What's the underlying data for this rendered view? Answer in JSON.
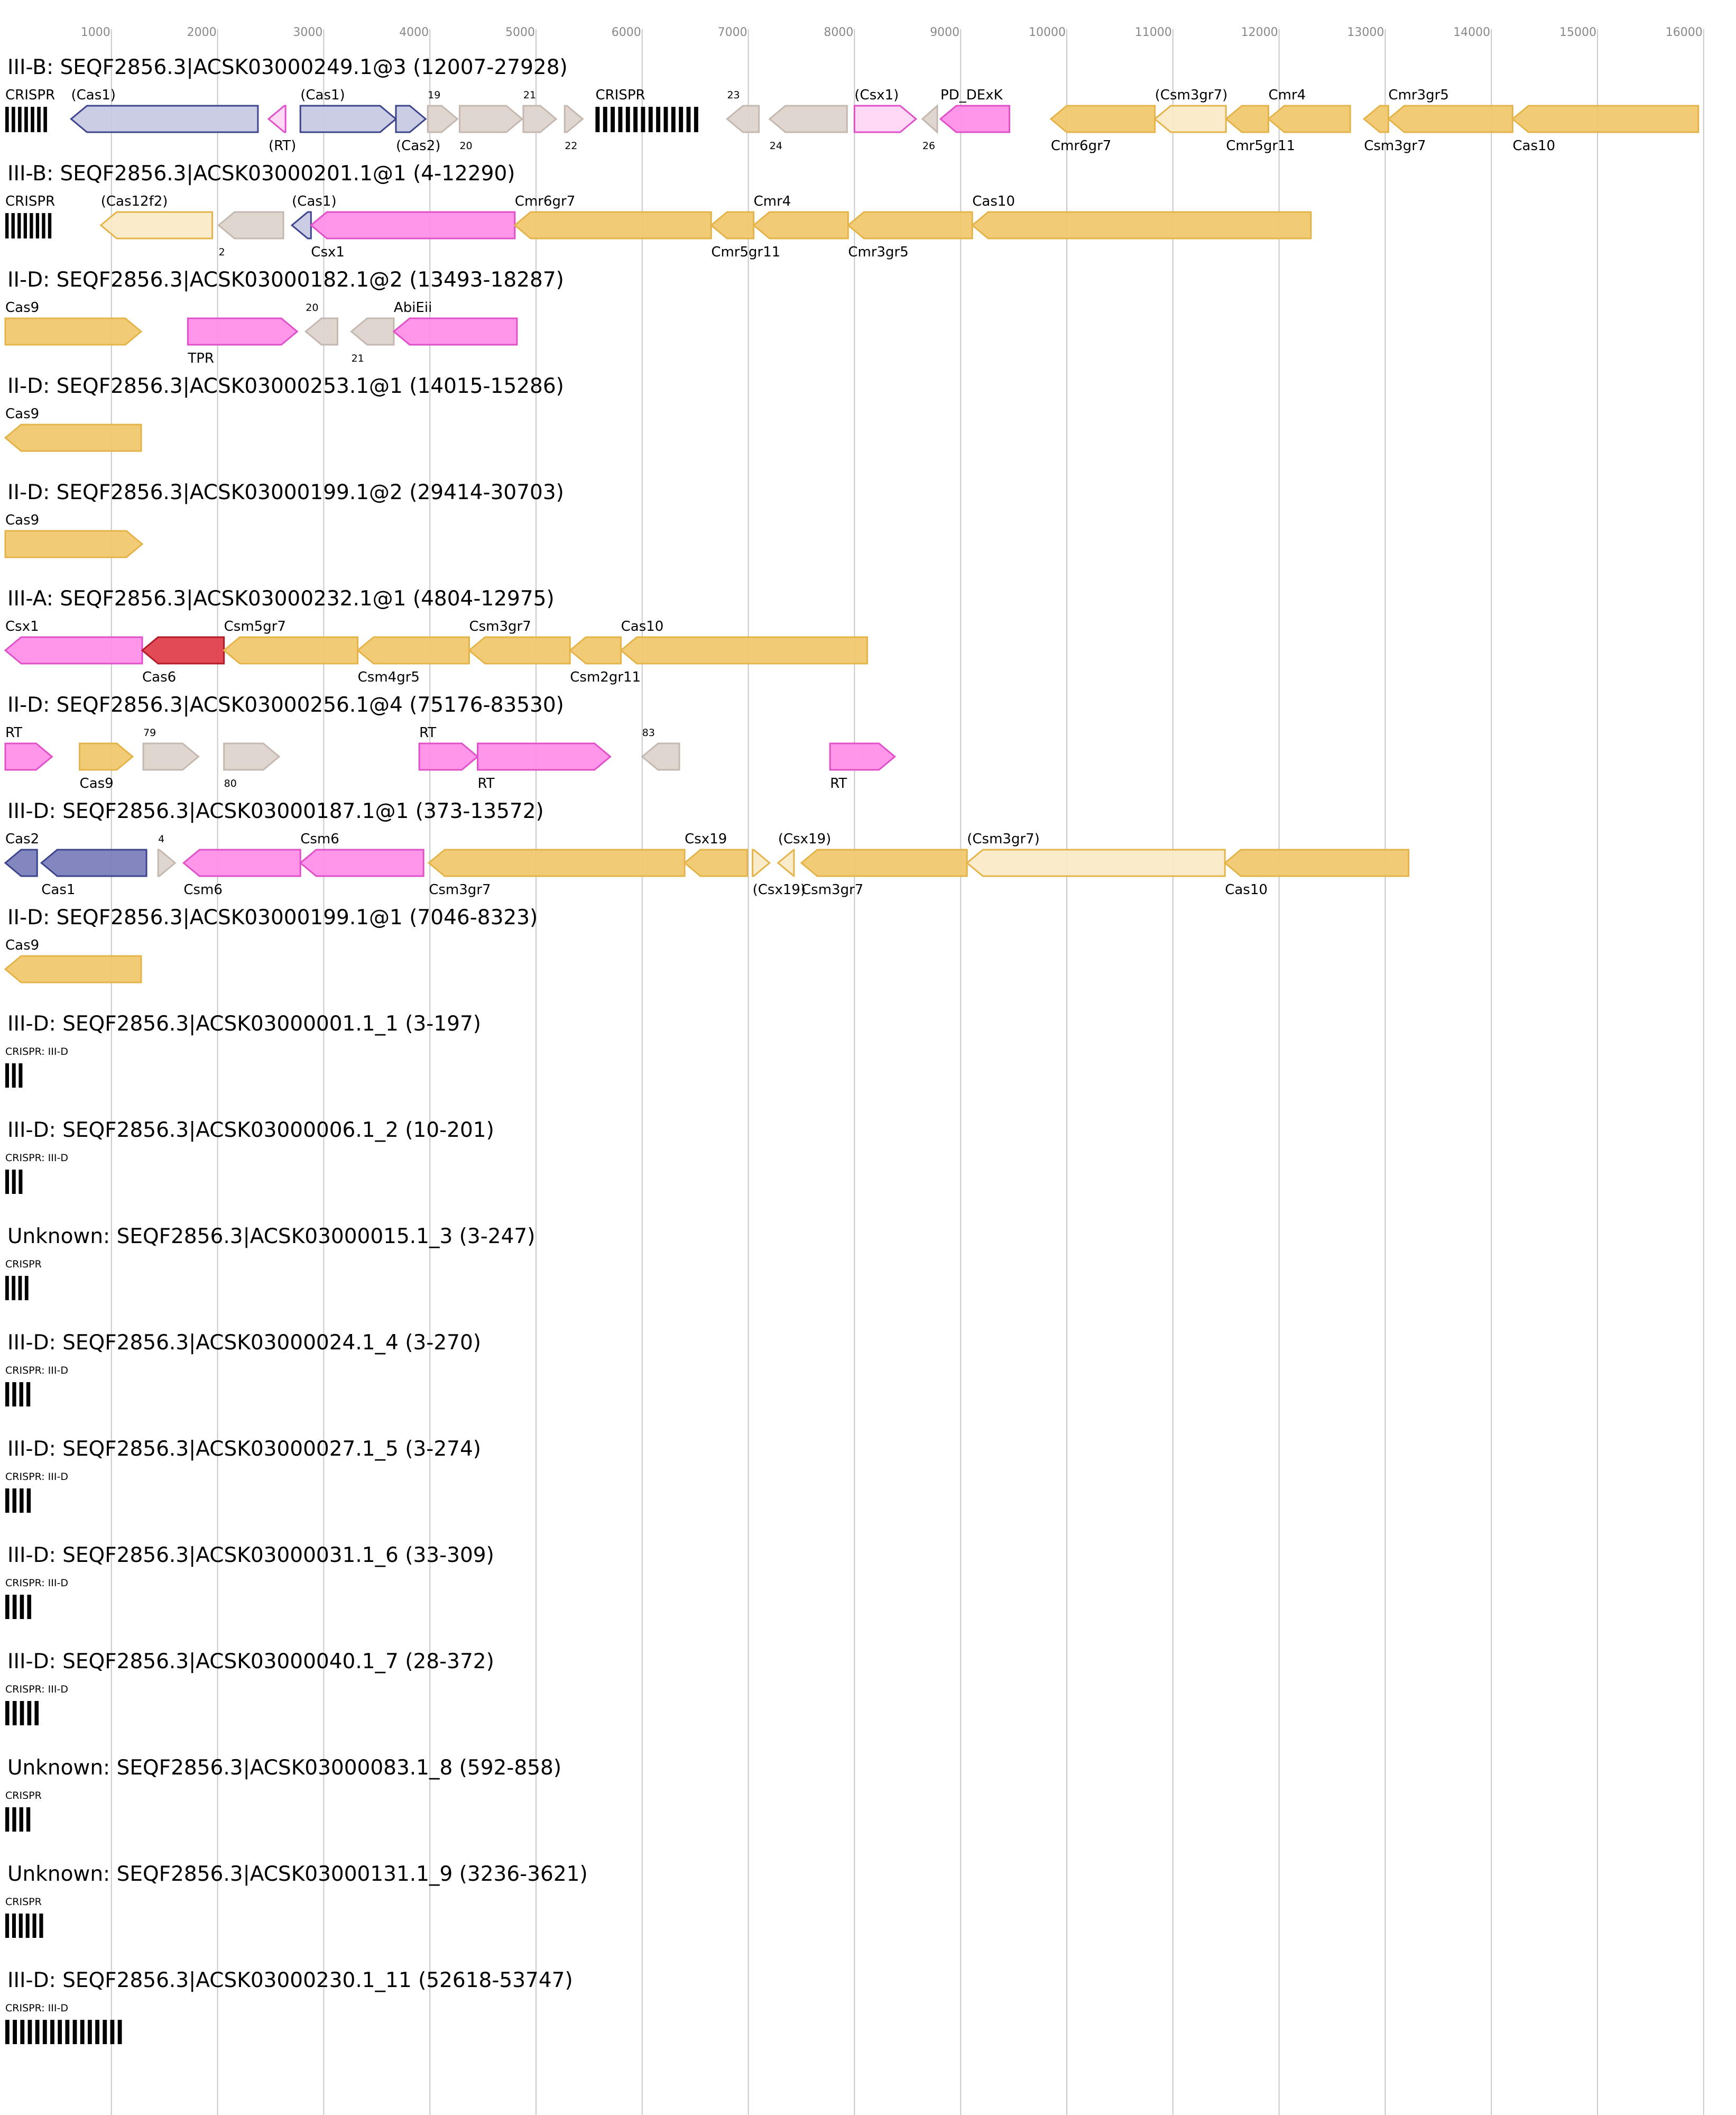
{
  "colors": {
    "cas_core": "#f0c86e",
    "cas_core_stroke": "#e4b44a",
    "cas_partial": "#faeac8",
    "adaptation": "#c8cae4",
    "adaptation_dark": "#7c80bc",
    "adaptation_stroke": "#3c448c",
    "accessory": "#ff90e8",
    "accessory_partial": "#ffd6f6",
    "accessory_stroke": "#e050c8",
    "cas6": "#e0404c",
    "cas6_stroke": "#b01c28",
    "unknown": "#ddd4ce",
    "unknown_stroke": "#c4b8b0",
    "crispr": "#000000"
  },
  "axis": {
    "min": 0,
    "max": 16200,
    "ticks": [
      1000,
      2000,
      3000,
      4000,
      5000,
      6000,
      7000,
      8000,
      9000,
      10000,
      11000,
      12000,
      13000,
      14000,
      15000,
      16000
    ],
    "tick_labels": [
      "1000",
      "2000",
      "3000",
      "4000",
      "5000",
      "6000",
      "7000",
      "8000",
      "9000",
      "10000",
      "11000",
      "12000",
      "13000",
      "14000",
      "15000",
      "16000"
    ]
  },
  "loci": [
    {
      "title": "III-B: SEQF2856.3|ACSK03000249.1@3 (12007-27928)",
      "features": [
        {
          "kind": "crispr",
          "start": 0,
          "end": 420,
          "n": 7,
          "label": "CRISPR",
          "lpos": "above"
        },
        {
          "kind": "gene",
          "start": 620,
          "end": 2380,
          "dir": -1,
          "cls": "adaptation",
          "label": "(Cas1)",
          "lpos": "above"
        },
        {
          "kind": "gene",
          "start": 2480,
          "end": 2640,
          "dir": -1,
          "cls": "accessory_partial",
          "label": "(RT)",
          "lpos": "below"
        },
        {
          "kind": "gene",
          "start": 2780,
          "end": 3680,
          "dir": 1,
          "cls": "adaptation",
          "label": "(Cas1)",
          "lpos": "above"
        },
        {
          "kind": "gene",
          "start": 3680,
          "end": 3960,
          "dir": 1,
          "cls": "adaptation",
          "label": "(Cas2)",
          "lpos": "below"
        },
        {
          "kind": "gene",
          "start": 3980,
          "end": 4260,
          "dir": 1,
          "cls": "unknown",
          "label": "19",
          "lpos": "above",
          "small": true
        },
        {
          "kind": "gene",
          "start": 4280,
          "end": 4870,
          "dir": 1,
          "cls": "unknown",
          "label": "20",
          "lpos": "below",
          "small": true
        },
        {
          "kind": "gene",
          "start": 4880,
          "end": 5190,
          "dir": 1,
          "cls": "unknown",
          "label": "21",
          "lpos": "above",
          "small": true
        },
        {
          "kind": "gene",
          "start": 5270,
          "end": 5440,
          "dir": 1,
          "cls": "unknown",
          "label": "22",
          "lpos": "below",
          "small": true
        },
        {
          "kind": "crispr",
          "start": 5560,
          "end": 6560,
          "n": 14,
          "label": "CRISPR",
          "lpos": "above"
        },
        {
          "kind": "gene",
          "start": 6800,
          "end": 7100,
          "dir": -1,
          "cls": "unknown",
          "label": "23",
          "lpos": "above",
          "small": true
        },
        {
          "kind": "gene",
          "start": 7200,
          "end": 7930,
          "dir": -1,
          "cls": "unknown",
          "label": "24",
          "lpos": "below",
          "small": true
        },
        {
          "kind": "gene",
          "start": 8000,
          "end": 8580,
          "dir": 1,
          "cls": "accessory_partial",
          "label": "(Csx1)",
          "lpos": "above"
        },
        {
          "kind": "gene",
          "start": 8640,
          "end": 8780,
          "dir": -1,
          "cls": "unknown",
          "label": "26",
          "lpos": "below",
          "small": true
        },
        {
          "kind": "gene",
          "start": 8810,
          "end": 9460,
          "dir": -1,
          "cls": "accessory",
          "label": "PD_DExK",
          "lpos": "above"
        },
        {
          "kind": "gene",
          "start": 9850,
          "end": 10830,
          "dir": -1,
          "cls": "cas_core",
          "label": "Cmr6gr7",
          "lpos": "below"
        },
        {
          "kind": "gene",
          "start": 10830,
          "end": 11500,
          "dir": -1,
          "cls": "cas_partial",
          "label": "(Csm3gr7)",
          "lpos": "above"
        },
        {
          "kind": "gene",
          "start": 11500,
          "end": 11900,
          "dir": -1,
          "cls": "cas_core",
          "label": "Cmr5gr11",
          "lpos": "below"
        },
        {
          "kind": "gene",
          "start": 11900,
          "end": 12670,
          "dir": -1,
          "cls": "cas_core",
          "label": "Cmr4",
          "lpos": "above"
        },
        {
          "kind": "gene",
          "start": 12800,
          "end": 13030,
          "dir": -1,
          "cls": "cas_core",
          "label": "Csm3gr7",
          "lpos": "below"
        },
        {
          "kind": "gene",
          "start": 13030,
          "end": 14200,
          "dir": -1,
          "cls": "cas_core",
          "label": "Cmr3gr5",
          "lpos": "above"
        },
        {
          "kind": "gene",
          "start": 14200,
          "end": 15950,
          "dir": -1,
          "cls": "cas_core",
          "label": "Cas10",
          "lpos": "below"
        }
      ]
    },
    {
      "title": "III-B: SEQF2856.3|ACSK03000201.1@1 (4-12290)",
      "features": [
        {
          "kind": "crispr",
          "start": 0,
          "end": 460,
          "n": 8,
          "label": "CRISPR",
          "lpos": "above"
        },
        {
          "kind": "gene",
          "start": 900,
          "end": 1950,
          "dir": -1,
          "cls": "cas_partial",
          "label": "(Cas12f2)",
          "lpos": "above"
        },
        {
          "kind": "gene",
          "start": 2010,
          "end": 2620,
          "dir": -1,
          "cls": "unknown",
          "label": "2",
          "lpos": "below",
          "small": true
        },
        {
          "kind": "gene",
          "start": 2700,
          "end": 2880,
          "dir": -1,
          "cls": "adaptation",
          "label": "(Cas1)",
          "lpos": "above"
        },
        {
          "kind": "gene",
          "start": 2880,
          "end": 4800,
          "dir": -1,
          "cls": "accessory",
          "label": "Csx1",
          "lpos": "below"
        },
        {
          "kind": "gene",
          "start": 4800,
          "end": 6650,
          "dir": -1,
          "cls": "cas_core",
          "label": "Cmr6gr7",
          "lpos": "above"
        },
        {
          "kind": "gene",
          "start": 6650,
          "end": 7050,
          "dir": -1,
          "cls": "cas_core",
          "label": "Cmr5gr11",
          "lpos": "below"
        },
        {
          "kind": "gene",
          "start": 7050,
          "end": 7940,
          "dir": -1,
          "cls": "cas_core",
          "label": "Cmr4",
          "lpos": "above"
        },
        {
          "kind": "gene",
          "start": 7940,
          "end": 9110,
          "dir": -1,
          "cls": "cas_core",
          "label": "Cmr3gr5",
          "lpos": "below"
        },
        {
          "kind": "gene",
          "start": 9110,
          "end": 12300,
          "dir": -1,
          "cls": "cas_core",
          "label": "Cas10",
          "lpos": "above"
        }
      ]
    },
    {
      "title": "II-D: SEQF2856.3|ACSK03000182.1@2 (13493-18287)",
      "features": [
        {
          "kind": "gene",
          "start": 0,
          "end": 1280,
          "dir": 1,
          "cls": "cas_core",
          "label": "Cas9",
          "lpos": "above"
        },
        {
          "kind": "gene",
          "start": 1720,
          "end": 2750,
          "dir": 1,
          "cls": "accessory",
          "label": "TPR",
          "lpos": "below"
        },
        {
          "kind": "gene",
          "start": 2830,
          "end": 3130,
          "dir": -1,
          "cls": "unknown",
          "label": "20",
          "lpos": "above",
          "small": true
        },
        {
          "kind": "gene",
          "start": 3260,
          "end": 3660,
          "dir": -1,
          "cls": "unknown",
          "label": "21",
          "lpos": "below",
          "small": true
        },
        {
          "kind": "gene",
          "start": 3660,
          "end": 4820,
          "dir": -1,
          "cls": "accessory",
          "label": "AbiEii",
          "lpos": "above"
        }
      ]
    },
    {
      "title": "II-D: SEQF2856.3|ACSK03000253.1@1 (14015-15286)",
      "features": [
        {
          "kind": "gene",
          "start": 0,
          "end": 1280,
          "dir": -1,
          "cls": "cas_core",
          "label": "Cas9",
          "lpos": "above"
        }
      ]
    },
    {
      "title": "II-D: SEQF2856.3|ACSK03000199.1@2 (29414-30703)",
      "features": [
        {
          "kind": "gene",
          "start": 0,
          "end": 1290,
          "dir": 1,
          "cls": "cas_core",
          "label": "Cas9",
          "lpos": "above"
        }
      ]
    },
    {
      "title": "III-A: SEQF2856.3|ACSK03000232.1@1 (4804-12975)",
      "features": [
        {
          "kind": "gene",
          "start": 0,
          "end": 1290,
          "dir": -1,
          "cls": "accessory",
          "label": "Csx1",
          "lpos": "above"
        },
        {
          "kind": "gene",
          "start": 1290,
          "end": 2060,
          "dir": -1,
          "cls": "cas6",
          "label": "Cas6",
          "lpos": "below"
        },
        {
          "kind": "gene",
          "start": 2060,
          "end": 3320,
          "dir": -1,
          "cls": "cas_core",
          "label": "Csm5gr7",
          "lpos": "above"
        },
        {
          "kind": "gene",
          "start": 3320,
          "end": 4370,
          "dir": -1,
          "cls": "cas_core",
          "label": "Csm4gr5",
          "lpos": "below"
        },
        {
          "kind": "gene",
          "start": 4370,
          "end": 5320,
          "dir": -1,
          "cls": "cas_core",
          "label": "Csm3gr7",
          "lpos": "above"
        },
        {
          "kind": "gene",
          "start": 5320,
          "end": 5800,
          "dir": -1,
          "cls": "cas_core",
          "label": "Csm2gr11",
          "lpos": "below"
        },
        {
          "kind": "gene",
          "start": 5800,
          "end": 8120,
          "dir": -1,
          "cls": "cas_core",
          "label": "Cas10",
          "lpos": "above"
        }
      ]
    },
    {
      "title": "II-D: SEQF2856.3|ACSK03000256.1@4 (75176-83530)",
      "features": [
        {
          "kind": "gene",
          "start": 0,
          "end": 440,
          "dir": 1,
          "cls": "accessory",
          "label": "RT",
          "lpos": "above"
        },
        {
          "kind": "gene",
          "start": 700,
          "end": 1200,
          "dir": 1,
          "cls": "cas_core",
          "label": "Cas9",
          "lpos": "below"
        },
        {
          "kind": "gene",
          "start": 1300,
          "end": 1820,
          "dir": 1,
          "cls": "unknown",
          "label": "79",
          "lpos": "above",
          "small": true
        },
        {
          "kind": "gene",
          "start": 2060,
          "end": 2580,
          "dir": 1,
          "cls": "unknown",
          "label": "80",
          "lpos": "below",
          "small": true
        },
        {
          "kind": "gene",
          "start": 3900,
          "end": 4450,
          "dir": 1,
          "cls": "accessory",
          "label": "RT",
          "lpos": "above"
        },
        {
          "kind": "gene",
          "start": 4450,
          "end": 5700,
          "dir": 1,
          "cls": "accessory",
          "label": "RT",
          "lpos": "below"
        },
        {
          "kind": "gene",
          "start": 6000,
          "end": 6350,
          "dir": -1,
          "cls": "unknown",
          "label": "83",
          "lpos": "above",
          "small": true
        },
        {
          "kind": "gene",
          "start": 7770,
          "end": 8380,
          "dir": 1,
          "cls": "accessory",
          "label": "RT",
          "lpos": "below"
        }
      ]
    },
    {
      "title": "III-D: SEQF2856.3|ACSK03000187.1@1 (373-13572)",
      "features": [
        {
          "kind": "gene",
          "start": 0,
          "end": 300,
          "dir": -1,
          "cls": "adaptation_dark",
          "label": "Cas2",
          "lpos": "above"
        },
        {
          "kind": "gene",
          "start": 340,
          "end": 1330,
          "dir": -1,
          "cls": "adaptation_dark",
          "label": "Cas1",
          "lpos": "below"
        },
        {
          "kind": "gene",
          "start": 1440,
          "end": 1600,
          "dir": 1,
          "cls": "unknown",
          "label": "4",
          "lpos": "above",
          "small": true
        },
        {
          "kind": "gene",
          "start": 1680,
          "end": 2780,
          "dir": -1,
          "cls": "accessory",
          "label": "Csm6",
          "lpos": "below"
        },
        {
          "kind": "gene",
          "start": 2780,
          "end": 3940,
          "dir": -1,
          "cls": "accessory",
          "label": "Csm6",
          "lpos": "above"
        },
        {
          "kind": "gene",
          "start": 3990,
          "end": 6400,
          "dir": -1,
          "cls": "cas_core",
          "label": "Csm3gr7",
          "lpos": "below"
        },
        {
          "kind": "gene",
          "start": 6400,
          "end": 6990,
          "dir": -1,
          "cls": "cas_core",
          "label": "Csx19",
          "lpos": "above"
        },
        {
          "kind": "gene",
          "start": 7040,
          "end": 7200,
          "dir": 1,
          "cls": "cas_partial",
          "label": "(Csx19)",
          "lpos": "below"
        },
        {
          "kind": "gene",
          "start": 7280,
          "end": 7430,
          "dir": -1,
          "cls": "cas_partial",
          "label": "(Csx19)",
          "lpos": "above"
        },
        {
          "kind": "gene",
          "start": 7500,
          "end": 9060,
          "dir": -1,
          "cls": "cas_core",
          "label": "Csm3gr7",
          "lpos": "below"
        },
        {
          "kind": "gene",
          "start": 9060,
          "end": 11490,
          "dir": -1,
          "cls": "cas_partial",
          "label": "(Csm3gr7)",
          "lpos": "above"
        },
        {
          "kind": "gene",
          "start": 11490,
          "end": 13220,
          "dir": -1,
          "cls": "cas_core",
          "label": "Cas10",
          "lpos": "below"
        }
      ]
    },
    {
      "title": "II-D: SEQF2856.3|ACSK03000199.1@1 (7046-8323)",
      "features": [
        {
          "kind": "gene",
          "start": 0,
          "end": 1280,
          "dir": -1,
          "cls": "cas_core",
          "label": "Cas9",
          "lpos": "above"
        }
      ]
    },
    {
      "title": "III-D: SEQF2856.3|ACSK03000001.1_1 (3-197)",
      "features": [
        {
          "kind": "crispr",
          "start": 0,
          "end": 190,
          "n": 3,
          "label": "CRISPR: III-D",
          "lpos": "above",
          "small": true
        }
      ]
    },
    {
      "title": "III-D: SEQF2856.3|ACSK03000006.1_2 (10-201)",
      "features": [
        {
          "kind": "crispr",
          "start": 0,
          "end": 190,
          "n": 3,
          "label": "CRISPR: III-D",
          "lpos": "above",
          "small": true
        }
      ]
    },
    {
      "title": "Unknown: SEQF2856.3|ACSK03000015.1_3 (3-247)",
      "features": [
        {
          "kind": "crispr",
          "start": 0,
          "end": 245,
          "n": 4,
          "label": "CRISPR",
          "lpos": "above",
          "small": true
        }
      ]
    },
    {
      "title": "III-D: SEQF2856.3|ACSK03000024.1_4 (3-270)",
      "features": [
        {
          "kind": "crispr",
          "start": 0,
          "end": 265,
          "n": 4,
          "label": "CRISPR: III-D",
          "lpos": "above",
          "small": true
        }
      ]
    },
    {
      "title": "III-D: SEQF2856.3|ACSK03000027.1_5 (3-274)",
      "features": [
        {
          "kind": "crispr",
          "start": 0,
          "end": 270,
          "n": 4,
          "label": "CRISPR: III-D",
          "lpos": "above",
          "small": true
        }
      ]
    },
    {
      "title": "III-D: SEQF2856.3|ACSK03000031.1_6 (33-309)",
      "features": [
        {
          "kind": "crispr",
          "start": 0,
          "end": 275,
          "n": 4,
          "label": "CRISPR: III-D",
          "lpos": "above",
          "small": true
        }
      ]
    },
    {
      "title": "III-D: SEQF2856.3|ACSK03000040.1_7 (28-372)",
      "features": [
        {
          "kind": "crispr",
          "start": 0,
          "end": 345,
          "n": 5,
          "label": "CRISPR: III-D",
          "lpos": "above",
          "small": true
        }
      ]
    },
    {
      "title": "Unknown: SEQF2856.3|ACSK03000083.1_8 (592-858)",
      "features": [
        {
          "kind": "crispr",
          "start": 0,
          "end": 265,
          "n": 4,
          "label": "CRISPR",
          "lpos": "above",
          "small": true
        }
      ]
    },
    {
      "title": "Unknown: SEQF2856.3|ACSK03000131.1_9 (3236-3621)",
      "features": [
        {
          "kind": "crispr",
          "start": 0,
          "end": 385,
          "n": 6,
          "label": "CRISPR",
          "lpos": "above",
          "small": true
        }
      ]
    },
    {
      "title": "III-D: SEQF2856.3|ACSK03000230.1_11 (52618-53747)",
      "features": [
        {
          "kind": "crispr",
          "start": 0,
          "end": 1130,
          "n": 16,
          "label": "CRISPR: III-D",
          "lpos": "above",
          "small": true
        }
      ]
    }
  ]
}
